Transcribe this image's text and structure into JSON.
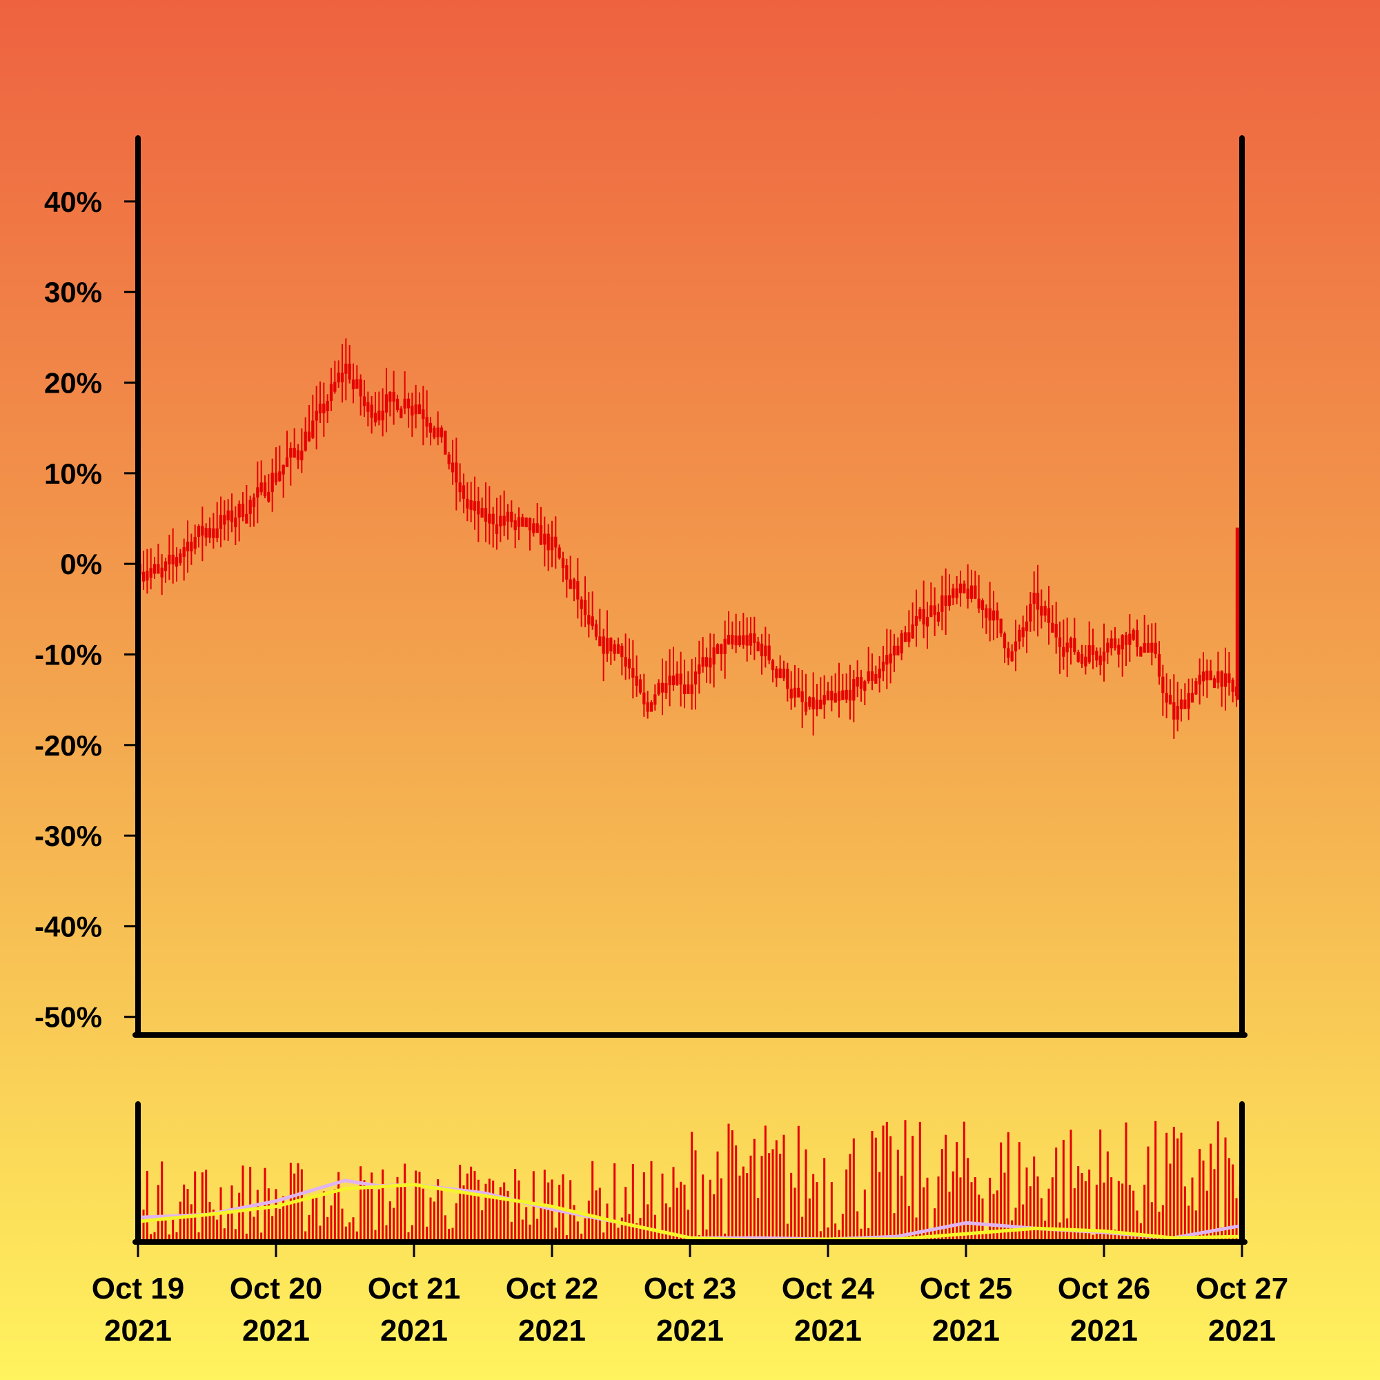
{
  "chart_data": [
    {
      "type": "candlestick",
      "y_unit": "percent",
      "ylim": [
        -52,
        47
      ],
      "yticks": [
        40,
        30,
        20,
        10,
        0,
        -10,
        -20,
        -30,
        -40,
        -50
      ],
      "ytick_labels": [
        "40%",
        "30%",
        "20%",
        "10%",
        "0%",
        "-10%",
        "-20%",
        "-30%",
        "-40%",
        "-50%"
      ],
      "x_range": [
        "2021-10-19",
        "2021-10-27"
      ],
      "x_ticks": [
        {
          "date": "2021-10-19",
          "line1": "Oct 19",
          "line2": "2021"
        },
        {
          "date": "2021-10-20",
          "line1": "Oct 20",
          "line2": "2021"
        },
        {
          "date": "2021-10-21",
          "line1": "Oct 21",
          "line2": "2021"
        },
        {
          "date": "2021-10-22",
          "line1": "Oct 22",
          "line2": "2021"
        },
        {
          "date": "2021-10-23",
          "line1": "Oct 23",
          "line2": "2021"
        },
        {
          "date": "2021-10-24",
          "line1": "Oct 24",
          "line2": "2021"
        },
        {
          "date": "2021-10-25",
          "line1": "Oct 25",
          "line2": "2021"
        },
        {
          "date": "2021-10-26",
          "line1": "Oct 26",
          "line2": "2021"
        },
        {
          "date": "2021-10-27",
          "line1": "Oct 27",
          "line2": "2021"
        }
      ],
      "trend_points": [
        {
          "date": "2021-10-19T00:00",
          "close": 0
        },
        {
          "date": "2021-10-19T04:00",
          "close": -1
        },
        {
          "date": "2021-10-19T08:00",
          "close": 2
        },
        {
          "date": "2021-10-19T12:00",
          "close": 4
        },
        {
          "date": "2021-10-19T16:00",
          "close": 5
        },
        {
          "date": "2021-10-19T20:00",
          "close": 7
        },
        {
          "date": "2021-10-20T00:00",
          "close": 10
        },
        {
          "date": "2021-10-20T04:00",
          "close": 13
        },
        {
          "date": "2021-10-20T08:00",
          "close": 17
        },
        {
          "date": "2021-10-20T12:00",
          "close": 22
        },
        {
          "date": "2021-10-20T16:00",
          "close": 17
        },
        {
          "date": "2021-10-20T20:00",
          "close": 18
        },
        {
          "date": "2021-10-21T00:00",
          "close": 18
        },
        {
          "date": "2021-10-21T04:00",
          "close": 15
        },
        {
          "date": "2021-10-21T08:00",
          "close": 8
        },
        {
          "date": "2021-10-21T12:00",
          "close": 5
        },
        {
          "date": "2021-10-21T16:00",
          "close": 5
        },
        {
          "date": "2021-10-21T20:00",
          "close": 4
        },
        {
          "date": "2021-10-22T00:00",
          "close": 2
        },
        {
          "date": "2021-10-22T04:00",
          "close": -3
        },
        {
          "date": "2021-10-22T08:00",
          "close": -9
        },
        {
          "date": "2021-10-22T12:00",
          "close": -9
        },
        {
          "date": "2021-10-22T16:00",
          "close": -16
        },
        {
          "date": "2021-10-22T20:00",
          "close": -12
        },
        {
          "date": "2021-10-23T00:00",
          "close": -13
        },
        {
          "date": "2021-10-23T04:00",
          "close": -10
        },
        {
          "date": "2021-10-23T08:00",
          "close": -8
        },
        {
          "date": "2021-10-23T12:00",
          "close": -9
        },
        {
          "date": "2021-10-23T16:00",
          "close": -12
        },
        {
          "date": "2021-10-23T20:00",
          "close": -16
        },
        {
          "date": "2021-10-24T00:00",
          "close": -15
        },
        {
          "date": "2021-10-24T04:00",
          "close": -14
        },
        {
          "date": "2021-10-24T08:00",
          "close": -12
        },
        {
          "date": "2021-10-24T12:00",
          "close": -9
        },
        {
          "date": "2021-10-24T16:00",
          "close": -6
        },
        {
          "date": "2021-10-24T20:00",
          "close": -4
        },
        {
          "date": "2021-10-25T00:00",
          "close": -3
        },
        {
          "date": "2021-10-25T04:00",
          "close": -5
        },
        {
          "date": "2021-10-25T08:00",
          "close": -10
        },
        {
          "date": "2021-10-25T12:00",
          "close": -4
        },
        {
          "date": "2021-10-25T16:00",
          "close": -8
        },
        {
          "date": "2021-10-25T20:00",
          "close": -10
        },
        {
          "date": "2021-10-26T00:00",
          "close": -9
        },
        {
          "date": "2021-10-26T04:00",
          "close": -8
        },
        {
          "date": "2021-10-26T08:00",
          "close": -9
        },
        {
          "date": "2021-10-26T12:00",
          "close": -17
        },
        {
          "date": "2021-10-26T16:00",
          "close": -13
        },
        {
          "date": "2021-10-26T20:00",
          "close": -12
        },
        {
          "date": "2021-10-26T23:00",
          "close": -15
        },
        {
          "date": "2021-10-26T23:30",
          "close": 4
        },
        {
          "date": "2021-10-27T00:00",
          "close": 3
        }
      ],
      "colors": {
        "candle": "#e60000",
        "axis": "#000000"
      },
      "grid": false
    },
    {
      "type": "bar",
      "subtype": "volume",
      "moving_averages": [
        {
          "color": "#e0b4f0",
          "points": [
            {
              "date": "2021-10-19T00:00",
              "value": 0.18
            },
            {
              "date": "2021-10-19T12:00",
              "value": 0.2
            },
            {
              "date": "2021-10-20T00:00",
              "value": 0.3
            },
            {
              "date": "2021-10-20T12:00",
              "value": 0.45
            },
            {
              "date": "2021-10-20T18:00",
              "value": 0.41
            },
            {
              "date": "2021-10-21T00:00",
              "value": 0.42
            },
            {
              "date": "2021-10-21T12:00",
              "value": 0.36
            },
            {
              "date": "2021-10-22T00:00",
              "value": 0.24
            },
            {
              "date": "2021-10-22T12:00",
              "value": 0.14
            },
            {
              "date": "2021-10-23T00:00",
              "value": 0.03
            },
            {
              "date": "2021-10-23T12:00",
              "value": 0.03
            },
            {
              "date": "2021-10-24T00:00",
              "value": 0.02
            },
            {
              "date": "2021-10-24T12:00",
              "value": 0.04
            },
            {
              "date": "2021-10-25T00:00",
              "value": 0.14
            },
            {
              "date": "2021-10-25T12:00",
              "value": 0.1
            },
            {
              "date": "2021-10-26T00:00",
              "value": 0.07
            },
            {
              "date": "2021-10-26T12:00",
              "value": 0.03
            },
            {
              "date": "2021-10-27T00:00",
              "value": 0.12
            }
          ]
        },
        {
          "color": "#f5f52a",
          "points": [
            {
              "date": "2021-10-19T00:00",
              "value": 0.15
            },
            {
              "date": "2021-10-19T12:00",
              "value": 0.2
            },
            {
              "date": "2021-10-20T00:00",
              "value": 0.26
            },
            {
              "date": "2021-10-20T12:00",
              "value": 0.39
            },
            {
              "date": "2021-10-21T00:00",
              "value": 0.42
            },
            {
              "date": "2021-10-21T12:00",
              "value": 0.34
            },
            {
              "date": "2021-10-22T00:00",
              "value": 0.26
            },
            {
              "date": "2021-10-22T12:00",
              "value": 0.14
            },
            {
              "date": "2021-10-23T00:00",
              "value": 0.03
            },
            {
              "date": "2021-10-23T12:00",
              "value": 0.01
            },
            {
              "date": "2021-10-24T00:00",
              "value": 0.02
            },
            {
              "date": "2021-10-24T12:00",
              "value": 0.02
            },
            {
              "date": "2021-10-25T00:00",
              "value": 0.06
            },
            {
              "date": "2021-10-25T12:00",
              "value": 0.1
            },
            {
              "date": "2021-10-26T00:00",
              "value": 0.08
            },
            {
              "date": "2021-10-26T12:00",
              "value": 0.03
            },
            {
              "date": "2021-10-27T00:00",
              "value": 0.04
            }
          ]
        }
      ],
      "colors": {
        "bar": "#e60000",
        "axis": "#000000"
      }
    }
  ]
}
